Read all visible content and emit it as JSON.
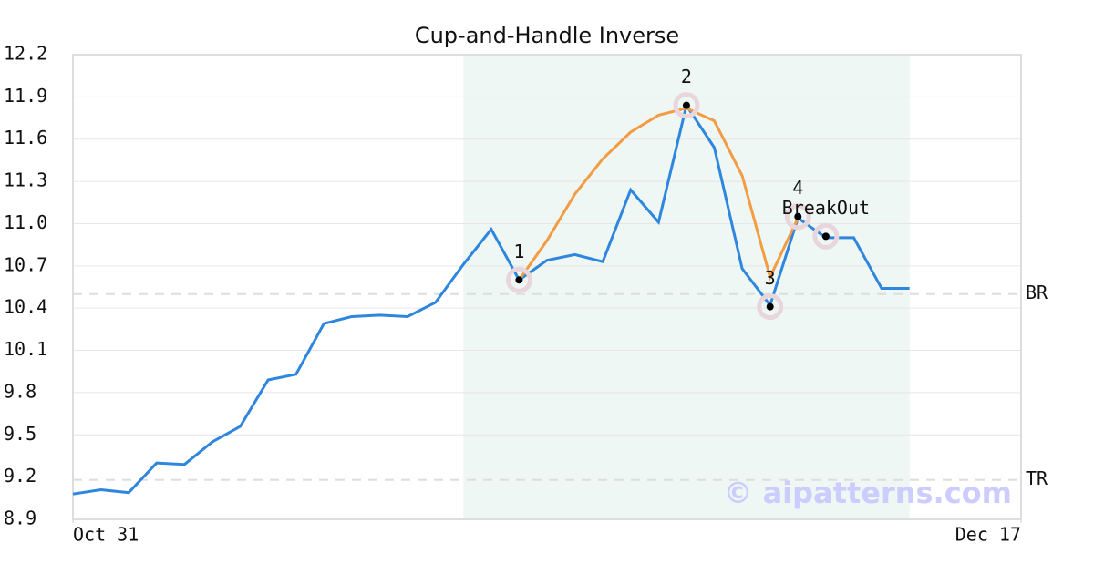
{
  "chart_data": {
    "type": "line",
    "title": "Cup-and-Handle Inverse",
    "xlim": [
      0,
      34
    ],
    "xticks": [
      {
        "value": 0,
        "label": "Oct 31"
      },
      {
        "value": 34,
        "label": "Dec 17"
      }
    ],
    "ylim": [
      8.9,
      12.2
    ],
    "yticks": [
      {
        "value": 8.9,
        "label": "8.9"
      },
      {
        "value": 9.2,
        "label": "9.2"
      },
      {
        "value": 9.5,
        "label": "9.5"
      },
      {
        "value": 9.8,
        "label": "9.8"
      },
      {
        "value": 10.1,
        "label": "10.1"
      },
      {
        "value": 10.4,
        "label": "10.4"
      },
      {
        "value": 10.7,
        "label": "10.7"
      },
      {
        "value": 11.0,
        "label": "11.0"
      },
      {
        "value": 11.3,
        "label": "11.3"
      },
      {
        "value": 11.6,
        "label": "11.6"
      },
      {
        "value": 11.9,
        "label": "11.9"
      },
      {
        "value": 12.2,
        "label": "12.2"
      }
    ],
    "grid": true,
    "highlight": {
      "x": [
        14,
        30
      ],
      "color": "#eef7f4"
    },
    "series": [
      {
        "color": "#2e86de",
        "x": [
          0,
          1,
          2,
          3,
          4,
          5,
          6,
          7,
          8,
          9,
          10,
          11,
          12,
          13,
          14,
          15,
          16,
          17,
          18,
          19,
          20,
          21,
          22,
          23,
          24,
          25,
          26,
          27,
          28,
          29,
          30
        ],
        "values": [
          9.08,
          9.11,
          9.09,
          9.3,
          9.29,
          9.45,
          9.56,
          9.89,
          9.93,
          10.29,
          10.34,
          10.35,
          10.34,
          10.44,
          10.71,
          10.96,
          10.6,
          10.74,
          10.78,
          10.73,
          11.24,
          11.01,
          11.84,
          11.54,
          10.68,
          10.42,
          11.04,
          10.9,
          10.9,
          10.54,
          10.54
        ]
      },
      {
        "color": "#f39c44",
        "x": [
          16,
          17,
          18,
          19,
          20,
          21,
          22,
          23,
          24,
          25,
          26
        ],
        "values": [
          10.6,
          10.88,
          11.21,
          11.46,
          11.65,
          11.77,
          11.82,
          11.73,
          11.34,
          10.62,
          11.04
        ]
      }
    ],
    "hlines": [
      {
        "label": "BR",
        "value": 10.5
      },
      {
        "label": "TR",
        "value": 9.18
      }
    ],
    "points": [
      {
        "label": "1",
        "x": 16,
        "y": 10.6
      },
      {
        "label": "2",
        "x": 22,
        "y": 11.84
      },
      {
        "label": "3",
        "x": 25,
        "y": 10.41
      },
      {
        "label": "4",
        "x": 26,
        "y": 11.05
      },
      {
        "label": "BreakOut",
        "x": 27,
        "y": 10.91
      }
    ],
    "watermark": "© aipatterns.com"
  }
}
